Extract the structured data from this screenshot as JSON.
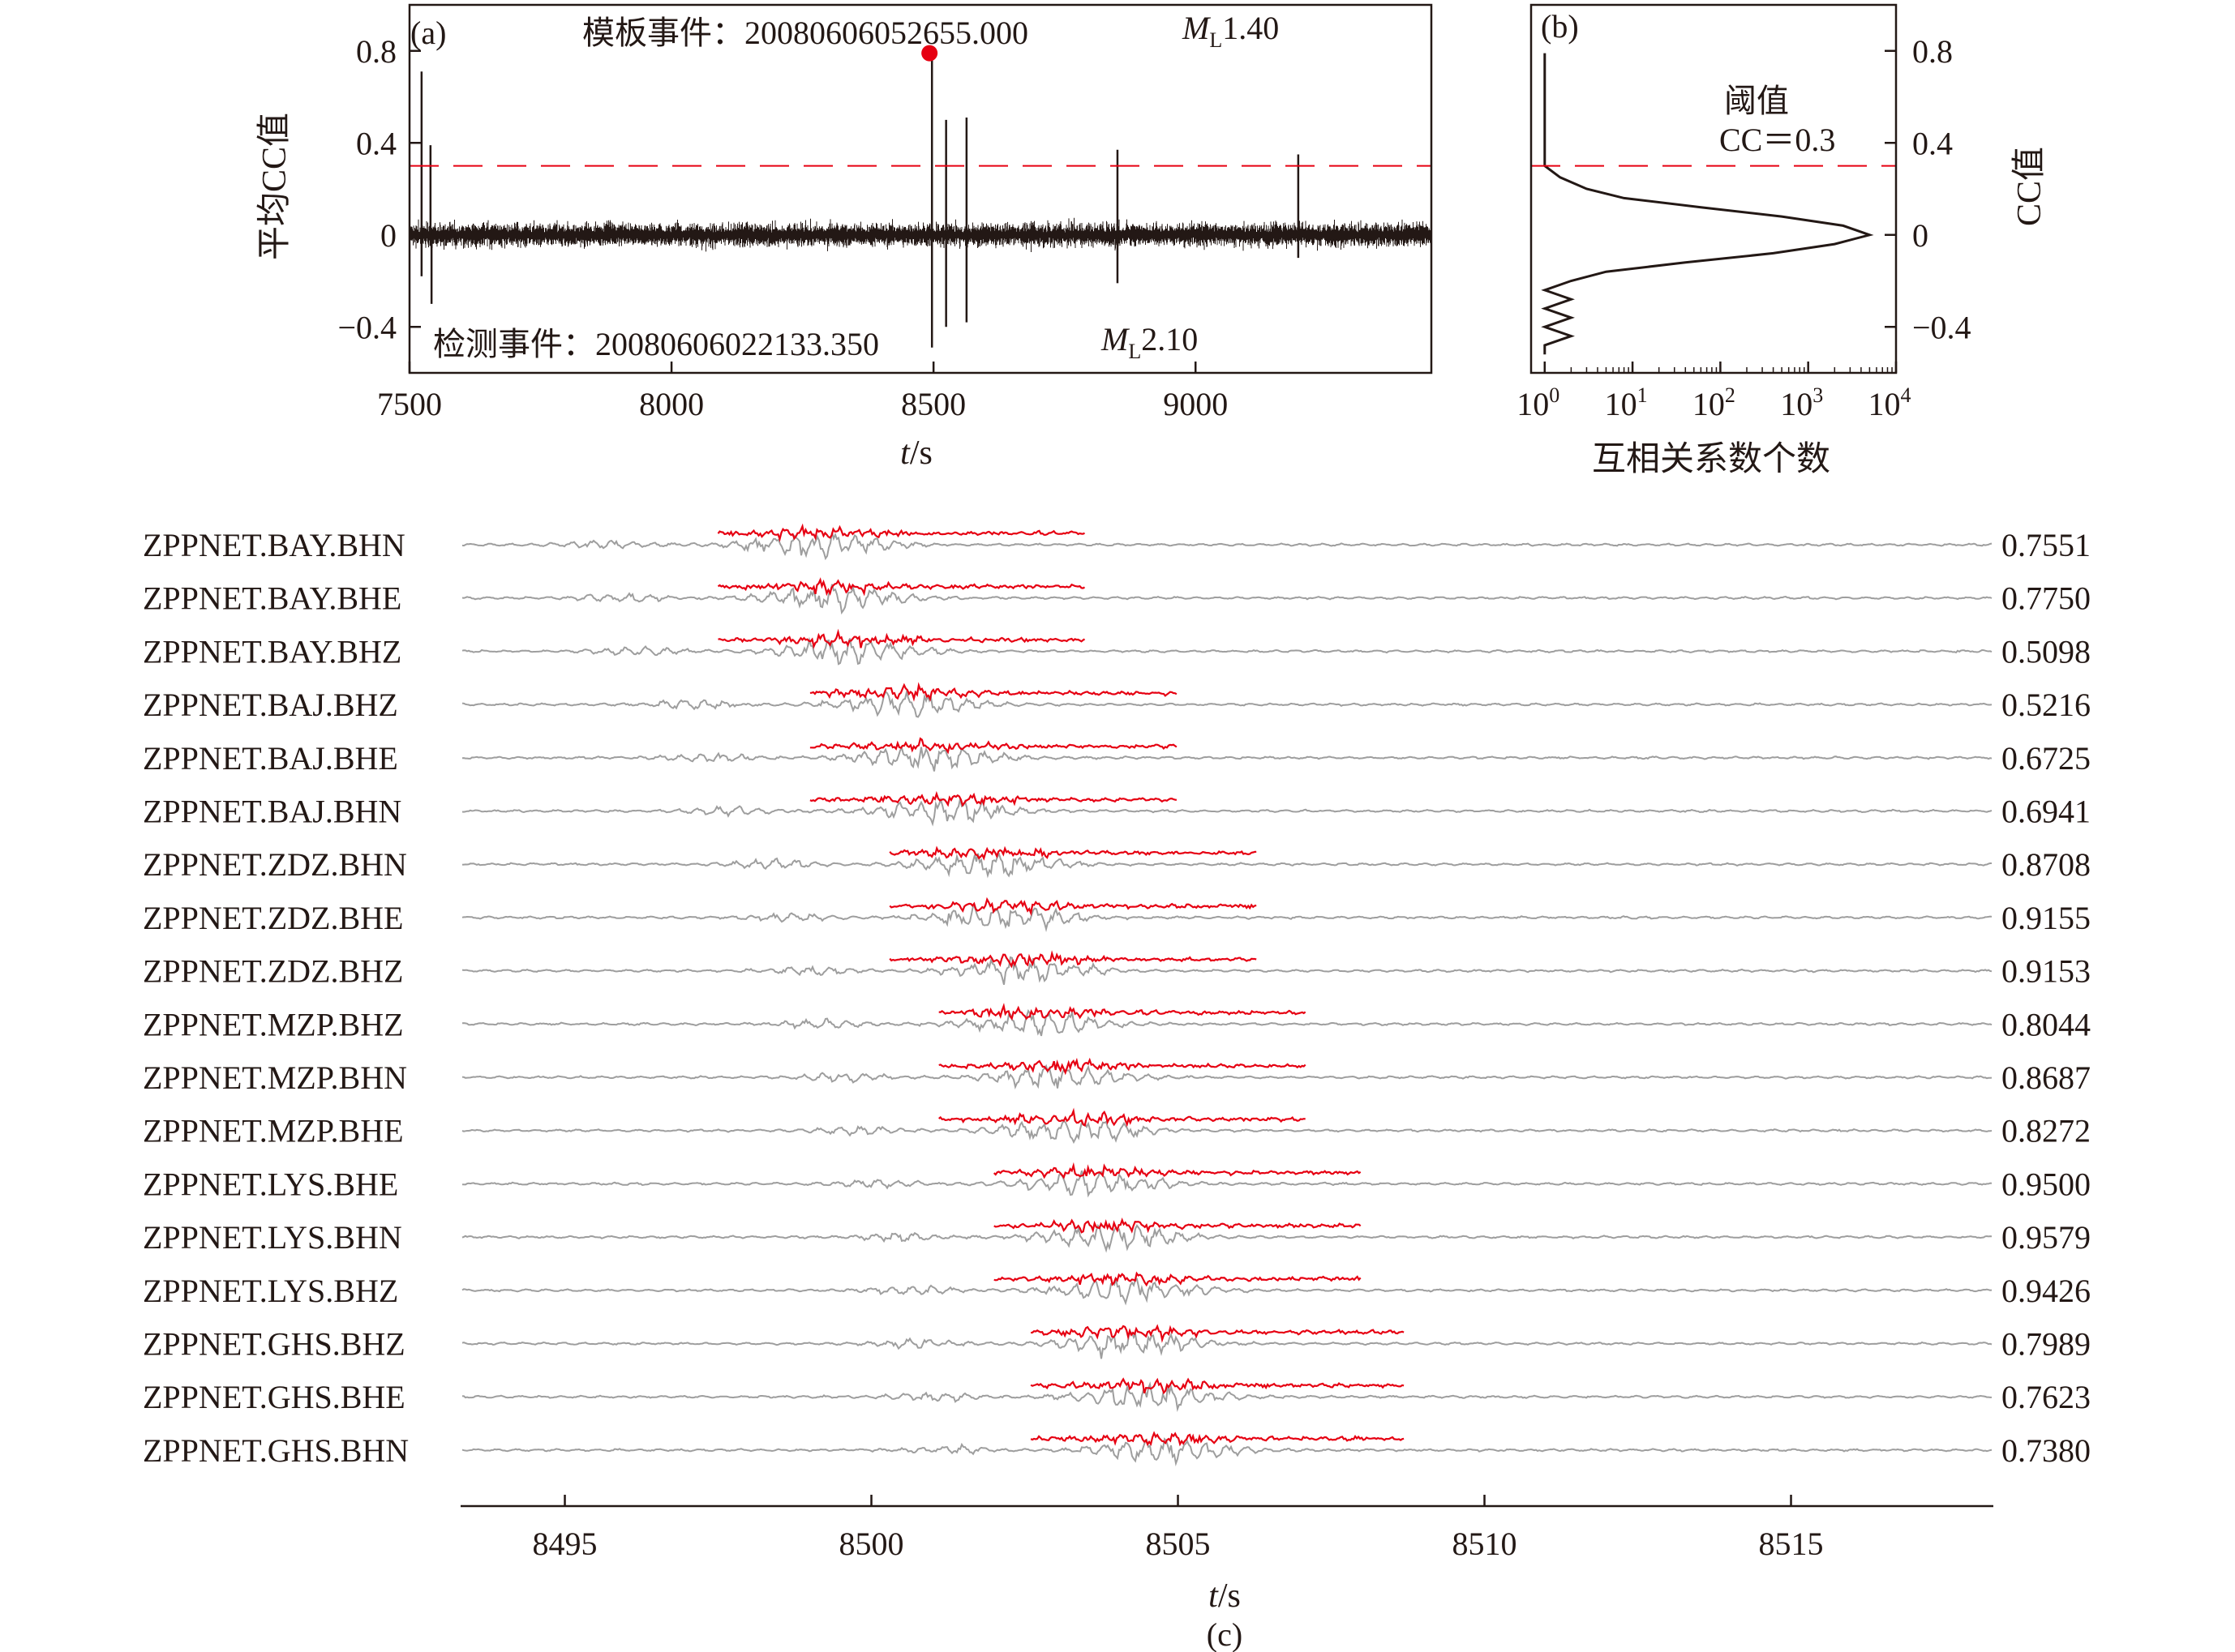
{
  "colors": {
    "ink": "#231815",
    "accent": "#e60012",
    "trace": "#9e9e9e",
    "template": "#e60012"
  },
  "panel_a": {
    "tag": "(a)",
    "template_event": "模板事件：20080606052655.000",
    "template_ml": "1.40",
    "detected_event": "检测事件：20080606022133.350",
    "detected_ml": "2.10",
    "ml_symbol": "M",
    "ml_sub": "L",
    "ylabel": "平均CC值",
    "xlabel_var": "t",
    "xlabel_unit": "/s"
  },
  "panel_b": {
    "tag": "(b)",
    "threshold_line1": "阈值",
    "threshold_line2": "CC＝0.3",
    "ylabel": "CC值",
    "xlabel": "互相关系数个数"
  },
  "panel_c": {
    "tag": "(c)",
    "xlabel_var": "t",
    "xlabel_unit": "/s"
  },
  "chart_data": [
    {
      "type": "line",
      "title": "",
      "xlabel": "t/s",
      "ylabel": "平均CC值",
      "xlim": [
        7500,
        9450
      ],
      "ylim": [
        -0.6,
        1.0
      ],
      "xticks": [
        7500,
        8000,
        8500,
        9000
      ],
      "yticks": [
        0.8,
        0.4,
        0,
        -0.4
      ],
      "ytick_labels": [
        "0.8",
        "0.4",
        "0",
        "−0.4"
      ],
      "threshold": 0.3,
      "detection": {
        "x": 8500,
        "y": 0.79
      },
      "spikes": [
        {
          "x": 7523,
          "y": 0.71
        },
        {
          "x": 7523,
          "y": -0.18
        },
        {
          "x": 7540,
          "y": 0.39
        },
        {
          "x": 7542,
          "y": -0.3
        },
        {
          "x": 8497,
          "y": 0.79
        },
        {
          "x": 8497,
          "y": -0.49
        },
        {
          "x": 8524,
          "y": 0.5
        },
        {
          "x": 8524,
          "y": -0.4
        },
        {
          "x": 8563,
          "y": 0.51
        },
        {
          "x": 8563,
          "y": -0.38
        },
        {
          "x": 8851,
          "y": 0.37
        },
        {
          "x": 8851,
          "y": -0.21
        },
        {
          "x": 9196,
          "y": 0.35
        },
        {
          "x": 9196,
          "y": -0.1
        }
      ]
    },
    {
      "type": "line",
      "title": "",
      "xlabel": "互相关系数个数",
      "ylabel": "CC值",
      "xscale": "log",
      "xlim": [
        0.7,
        10000
      ],
      "ylim": [
        -0.6,
        1.0
      ],
      "xtick_powers": [
        0,
        1,
        2,
        3,
        4
      ],
      "xtick_base": "10",
      "yticks": [
        0.8,
        0.4,
        0,
        -0.4
      ],
      "ytick_labels": [
        "0.8",
        "0.4",
        "0",
        "−0.4"
      ],
      "threshold": 0.3,
      "distribution": [
        {
          "cc": 0.79,
          "count": 1
        },
        {
          "cc": 0.3,
          "count": 1
        },
        {
          "cc": 0.25,
          "count": 1.5
        },
        {
          "cc": 0.2,
          "count": 3
        },
        {
          "cc": 0.16,
          "count": 8
        },
        {
          "cc": 0.12,
          "count": 60
        },
        {
          "cc": 0.08,
          "count": 500
        },
        {
          "cc": 0.04,
          "count": 2500
        },
        {
          "cc": 0.0,
          "count": 5000
        },
        {
          "cc": -0.04,
          "count": 2000
        },
        {
          "cc": -0.08,
          "count": 400
        },
        {
          "cc": -0.12,
          "count": 40
        },
        {
          "cc": -0.16,
          "count": 5
        },
        {
          "cc": -0.2,
          "count": 2
        },
        {
          "cc": -0.24,
          "count": 1
        },
        {
          "cc": -0.28,
          "count": 2
        },
        {
          "cc": -0.32,
          "count": 1
        },
        {
          "cc": -0.36,
          "count": 2
        },
        {
          "cc": -0.4,
          "count": 1
        },
        {
          "cc": -0.44,
          "count": 2
        },
        {
          "cc": -0.48,
          "count": 1
        },
        {
          "cc": -0.52,
          "count": 1
        }
      ]
    },
    {
      "type": "line",
      "title": "",
      "xlabel": "t/s",
      "xlim": [
        8493.3,
        8518.3
      ],
      "xticks": [
        8495,
        8500,
        8505,
        8510,
        8515
      ],
      "traces": [
        {
          "station": "ZPPNET.BAY.BHN",
          "cc": "0.7551",
          "template_start": 8497.5,
          "template_end": 8503.5
        },
        {
          "station": "ZPPNET.BAY.BHE",
          "cc": "0.7750",
          "template_start": 8497.5,
          "template_end": 8503.5
        },
        {
          "station": "ZPPNET.BAY.BHZ",
          "cc": "0.5098",
          "template_start": 8497.5,
          "template_end": 8503.5
        },
        {
          "station": "ZPPNET.BAJ.BHZ",
          "cc": "0.5216",
          "template_start": 8499.0,
          "template_end": 8505.0
        },
        {
          "station": "ZPPNET.BAJ.BHE",
          "cc": "0.6725",
          "template_start": 8499.0,
          "template_end": 8505.0
        },
        {
          "station": "ZPPNET.BAJ.BHN",
          "cc": "0.6941",
          "template_start": 8499.0,
          "template_end": 8505.0
        },
        {
          "station": "ZPPNET.ZDZ.BHN",
          "cc": "0.8708",
          "template_start": 8500.3,
          "template_end": 8506.3
        },
        {
          "station": "ZPPNET.ZDZ.BHE",
          "cc": "0.9155",
          "template_start": 8500.3,
          "template_end": 8506.3
        },
        {
          "station": "ZPPNET.ZDZ.BHZ",
          "cc": "0.9153",
          "template_start": 8500.3,
          "template_end": 8506.3
        },
        {
          "station": "ZPPNET.MZP.BHZ",
          "cc": "0.8044",
          "template_start": 8501.1,
          "template_end": 8507.1
        },
        {
          "station": "ZPPNET.MZP.BHN",
          "cc": "0.8687",
          "template_start": 8501.1,
          "template_end": 8507.1
        },
        {
          "station": "ZPPNET.MZP.BHE",
          "cc": "0.8272",
          "template_start": 8501.1,
          "template_end": 8507.1
        },
        {
          "station": "ZPPNET.LYS.BHE",
          "cc": "0.9500",
          "template_start": 8502.0,
          "template_end": 8508.0
        },
        {
          "station": "ZPPNET.LYS.BHN",
          "cc": "0.9579",
          "template_start": 8502.0,
          "template_end": 8508.0
        },
        {
          "station": "ZPPNET.LYS.BHZ",
          "cc": "0.9426",
          "template_start": 8502.0,
          "template_end": 8508.0
        },
        {
          "station": "ZPPNET.GHS.BHZ",
          "cc": "0.7989",
          "template_start": 8502.6,
          "template_end": 8508.7
        },
        {
          "station": "ZPPNET.GHS.BHE",
          "cc": "0.7623",
          "template_start": 8502.6,
          "template_end": 8508.7
        },
        {
          "station": "ZPPNET.GHS.BHN",
          "cc": "0.7380",
          "template_start": 8502.6,
          "template_end": 8508.7
        }
      ]
    }
  ]
}
